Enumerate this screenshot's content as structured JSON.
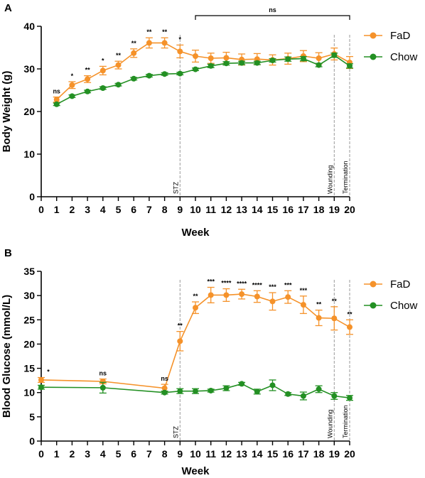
{
  "colors": {
    "fad": "#f5922a",
    "chow": "#239023",
    "axis": "#000000",
    "guide": "#9a9a9a"
  },
  "chart_data": [
    {
      "panel": "A",
      "type": "line",
      "ylabel": "Body Weight (g)",
      "xlabel": "Week",
      "xlim": [
        0,
        20
      ],
      "ylim": [
        0,
        40
      ],
      "xticks": [
        0,
        1,
        2,
        3,
        4,
        5,
        6,
        7,
        8,
        9,
        10,
        11,
        12,
        13,
        14,
        15,
        16,
        17,
        18,
        19,
        20
      ],
      "yticks": [
        0,
        10,
        20,
        30,
        40
      ],
      "legend_position": "top-right",
      "series": [
        {
          "name": "FaD",
          "color": "#f5922a",
          "x": [
            1,
            2,
            3,
            4,
            5,
            6,
            7,
            8,
            9,
            10,
            11,
            12,
            13,
            14,
            15,
            16,
            17,
            18,
            19,
            20
          ],
          "y": [
            22.8,
            26.2,
            27.6,
            29.6,
            30.9,
            33.7,
            36.1,
            36.1,
            34.1,
            33.0,
            32.5,
            32.6,
            32.2,
            32.3,
            32.1,
            32.4,
            33.0,
            32.5,
            33.5,
            31.5
          ],
          "err": [
            0.6,
            0.8,
            0.8,
            1.0,
            0.9,
            1.0,
            1.2,
            1.2,
            1.5,
            1.4,
            1.2,
            1.3,
            1.3,
            1.3,
            1.2,
            1.3,
            1.3,
            1.3,
            1.4,
            1.4
          ]
        },
        {
          "name": "Chow",
          "color": "#239023",
          "x": [
            1,
            2,
            3,
            4,
            5,
            6,
            7,
            8,
            9,
            10,
            11,
            12,
            13,
            14,
            15,
            16,
            17,
            18,
            19,
            20
          ],
          "y": [
            21.7,
            23.6,
            24.7,
            25.5,
            26.3,
            27.7,
            28.4,
            28.8,
            28.9,
            29.9,
            30.7,
            31.3,
            31.4,
            31.4,
            32.0,
            32.3,
            32.4,
            30.9,
            33.2,
            30.7
          ],
          "err": [
            0.3,
            0.3,
            0.3,
            0.3,
            0.3,
            0.3,
            0.3,
            0.3,
            0.3,
            0.3,
            0.4,
            0.4,
            0.4,
            0.4,
            0.4,
            0.5,
            0.5,
            0.4,
            0.5,
            0.5
          ]
        }
      ],
      "significance": [
        {
          "x": 1,
          "label": "ns"
        },
        {
          "x": 2,
          "label": "*"
        },
        {
          "x": 3,
          "label": "**"
        },
        {
          "x": 4,
          "label": "*"
        },
        {
          "x": 5,
          "label": "**"
        },
        {
          "x": 6,
          "label": "**"
        },
        {
          "x": 7,
          "label": "**"
        },
        {
          "x": 8,
          "label": "**"
        },
        {
          "x": 9,
          "label": "*"
        }
      ],
      "bracket": {
        "x_start": 10,
        "x_end": 20,
        "label": "ns"
      },
      "vlines": [
        {
          "x": 9,
          "label": "STZ"
        },
        {
          "x": 19,
          "label": "Wounding"
        },
        {
          "x": 20,
          "label": "Termination"
        }
      ]
    },
    {
      "panel": "B",
      "type": "line",
      "ylabel": "Blood Glucose (mmol/L)",
      "xlabel": "Week",
      "xlim": [
        0,
        20
      ],
      "ylim": [
        0,
        35
      ],
      "xticks": [
        0,
        1,
        2,
        3,
        4,
        5,
        6,
        7,
        8,
        9,
        10,
        11,
        12,
        13,
        14,
        15,
        16,
        17,
        18,
        19,
        20
      ],
      "yticks": [
        0,
        5,
        10,
        15,
        20,
        25,
        30,
        35
      ],
      "legend_position": "top-right",
      "series": [
        {
          "name": "FaD",
          "color": "#f5922a",
          "x": [
            0,
            4,
            8,
            9,
            10,
            11,
            12,
            13,
            14,
            15,
            16,
            17,
            18,
            19,
            20
          ],
          "y": [
            12.6,
            12.3,
            10.9,
            20.6,
            27.5,
            30.1,
            30.1,
            30.3,
            29.8,
            28.8,
            29.7,
            28.1,
            25.4,
            25.3,
            23.5
          ],
          "err": [
            0.5,
            0.5,
            0.8,
            2.0,
            1.2,
            1.6,
            1.3,
            1.0,
            1.2,
            1.8,
            1.3,
            1.8,
            1.6,
            2.4,
            1.5
          ]
        },
        {
          "name": "Chow",
          "color": "#239023",
          "x": [
            0,
            4,
            8,
            9,
            10,
            11,
            12,
            13,
            14,
            15,
            16,
            17,
            18,
            19,
            20
          ],
          "y": [
            11.1,
            11.0,
            10.0,
            10.3,
            10.3,
            10.4,
            10.9,
            11.8,
            10.2,
            11.5,
            9.7,
            9.3,
            10.7,
            9.3,
            8.9
          ],
          "err": [
            0.4,
            1.1,
            0.3,
            0.5,
            0.5,
            0.3,
            0.5,
            0.3,
            0.5,
            1.1,
            0.3,
            0.8,
            0.7,
            0.7,
            0.5
          ]
        }
      ],
      "significance": [
        {
          "x": 0,
          "label": "*"
        },
        {
          "x": 4,
          "label": "ns"
        },
        {
          "x": 8,
          "label": "ns"
        },
        {
          "x": 9,
          "label": "**"
        },
        {
          "x": 10,
          "label": "**"
        },
        {
          "x": 11,
          "label": "***"
        },
        {
          "x": 12,
          "label": "****"
        },
        {
          "x": 13,
          "label": "****"
        },
        {
          "x": 14,
          "label": "****"
        },
        {
          "x": 15,
          "label": "***"
        },
        {
          "x": 16,
          "label": "***"
        },
        {
          "x": 17,
          "label": "***"
        },
        {
          "x": 18,
          "label": "**"
        },
        {
          "x": 19,
          "label": "**"
        },
        {
          "x": 20,
          "label": "**"
        }
      ],
      "vlines": [
        {
          "x": 9,
          "label": "STZ"
        },
        {
          "x": 19,
          "label": "Wounding"
        },
        {
          "x": 20,
          "label": "Termination"
        }
      ]
    }
  ]
}
